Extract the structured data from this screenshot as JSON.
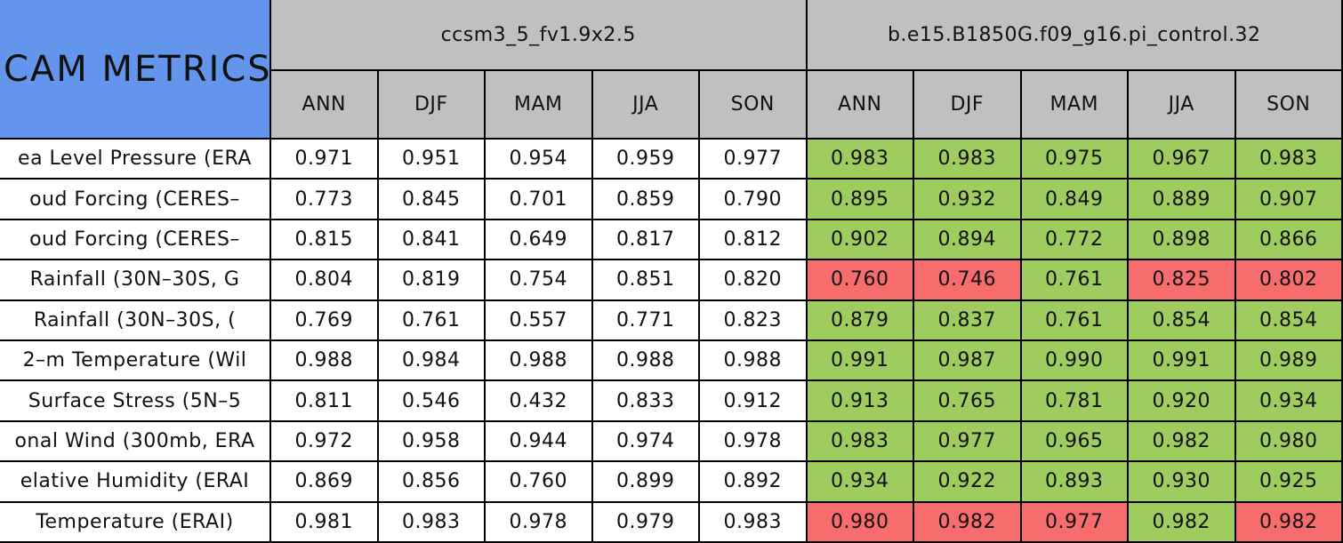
{
  "header": {
    "title": "CAM METRICS",
    "groups": [
      {
        "name": "ccsm3_5_fv1.9x2.5",
        "seasons": [
          "ANN",
          "DJF",
          "MAM",
          "JJA",
          "SON"
        ]
      },
      {
        "name": "b.e15.B1850G.f09_g16.pi_control.32",
        "seasons": [
          "ANN",
          "DJF",
          "MAM",
          "JJA",
          "SON"
        ]
      }
    ]
  },
  "rows": [
    {
      "label": "ea Level Pressure (ERA",
      "values": [
        "0.971",
        "0.951",
        "0.954",
        "0.959",
        "0.977",
        "0.983",
        "0.983",
        "0.975",
        "0.967",
        "0.983"
      ],
      "fills": [
        "#ffffff",
        "#ffffff",
        "#ffffff",
        "#ffffff",
        "#ffffff",
        "#9fcc5f",
        "#9fcc5f",
        "#9fcc5f",
        "#9fcc5f",
        "#9fcc5f"
      ]
    },
    {
      "label": "oud Forcing (CERES–",
      "values": [
        "0.773",
        "0.845",
        "0.701",
        "0.859",
        "0.790",
        "0.895",
        "0.932",
        "0.849",
        "0.889",
        "0.907"
      ],
      "fills": [
        "#ffffff",
        "#ffffff",
        "#ffffff",
        "#ffffff",
        "#ffffff",
        "#9fcc5f",
        "#9fcc5f",
        "#9fcc5f",
        "#9fcc5f",
        "#9fcc5f"
      ]
    },
    {
      "label": "oud Forcing (CERES–",
      "values": [
        "0.815",
        "0.841",
        "0.649",
        "0.817",
        "0.812",
        "0.902",
        "0.894",
        "0.772",
        "0.898",
        "0.866"
      ],
      "fills": [
        "#ffffff",
        "#ffffff",
        "#ffffff",
        "#ffffff",
        "#ffffff",
        "#9fcc5f",
        "#9fcc5f",
        "#9fcc5f",
        "#9fcc5f",
        "#9fcc5f"
      ]
    },
    {
      "label": "Rainfall (30N–30S, G",
      "values": [
        "0.804",
        "0.819",
        "0.754",
        "0.851",
        "0.820",
        "0.760",
        "0.746",
        "0.761",
        "0.825",
        "0.802"
      ],
      "fills": [
        "#ffffff",
        "#ffffff",
        "#ffffff",
        "#ffffff",
        "#ffffff",
        "#f76c6c",
        "#f76c6c",
        "#9fcc5f",
        "#f76c6c",
        "#f76c6c"
      ]
    },
    {
      "label": "Rainfall (30N–30S, (",
      "values": [
        "0.769",
        "0.761",
        "0.557",
        "0.771",
        "0.823",
        "0.879",
        "0.837",
        "0.761",
        "0.854",
        "0.854"
      ],
      "fills": [
        "#ffffff",
        "#ffffff",
        "#ffffff",
        "#ffffff",
        "#ffffff",
        "#9fcc5f",
        "#9fcc5f",
        "#9fcc5f",
        "#9fcc5f",
        "#9fcc5f"
      ]
    },
    {
      "label": "2–m Temperature (Wil",
      "values": [
        "0.988",
        "0.984",
        "0.988",
        "0.988",
        "0.988",
        "0.991",
        "0.987",
        "0.990",
        "0.991",
        "0.989"
      ],
      "fills": [
        "#ffffff",
        "#ffffff",
        "#ffffff",
        "#ffffff",
        "#ffffff",
        "#9fcc5f",
        "#9fcc5f",
        "#9fcc5f",
        "#9fcc5f",
        "#9fcc5f"
      ]
    },
    {
      "label": "Surface Stress (5N–5",
      "values": [
        "0.811",
        "0.546",
        "0.432",
        "0.833",
        "0.912",
        "0.913",
        "0.765",
        "0.781",
        "0.920",
        "0.934"
      ],
      "fills": [
        "#ffffff",
        "#ffffff",
        "#ffffff",
        "#ffffff",
        "#ffffff",
        "#9fcc5f",
        "#9fcc5f",
        "#9fcc5f",
        "#9fcc5f",
        "#9fcc5f"
      ]
    },
    {
      "label": "onal Wind (300mb, ERA",
      "values": [
        "0.972",
        "0.958",
        "0.944",
        "0.974",
        "0.978",
        "0.983",
        "0.977",
        "0.965",
        "0.982",
        "0.980"
      ],
      "fills": [
        "#ffffff",
        "#ffffff",
        "#ffffff",
        "#ffffff",
        "#ffffff",
        "#9fcc5f",
        "#9fcc5f",
        "#9fcc5f",
        "#9fcc5f",
        "#9fcc5f"
      ]
    },
    {
      "label": "elative Humidity (ERAI",
      "values": [
        "0.869",
        "0.856",
        "0.760",
        "0.899",
        "0.892",
        "0.934",
        "0.922",
        "0.893",
        "0.930",
        "0.925"
      ],
      "fills": [
        "#ffffff",
        "#ffffff",
        "#ffffff",
        "#ffffff",
        "#ffffff",
        "#9fcc5f",
        "#9fcc5f",
        "#9fcc5f",
        "#9fcc5f",
        "#9fcc5f"
      ]
    },
    {
      "label": "Temperature (ERAI)",
      "values": [
        "0.981",
        "0.983",
        "0.978",
        "0.979",
        "0.983",
        "0.980",
        "0.982",
        "0.977",
        "0.982",
        "0.982"
      ],
      "fills": [
        "#ffffff",
        "#ffffff",
        "#ffffff",
        "#ffffff",
        "#ffffff",
        "#f76c6c",
        "#f76c6c",
        "#f76c6c",
        "#9fcc5f",
        "#f76c6c"
      ]
    }
  ]
}
